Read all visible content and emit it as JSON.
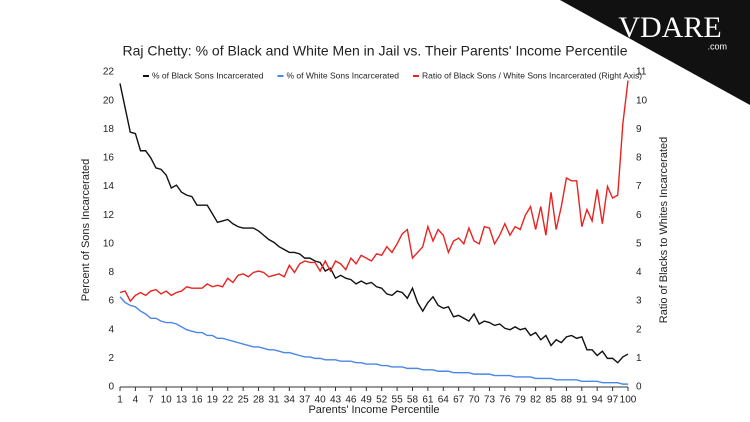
{
  "logo": {
    "name": "VDARE",
    "suffix": ".com"
  },
  "chart_data": {
    "type": "line",
    "title": "Raj Chetty: % of Black and White Men in Jail vs. Their Parents' Income Percentile",
    "x_label": "Parents' Income Percentile",
    "y_label": "Percent of Sons Incarcerated",
    "y2_label": "Ratio of Blacks to Whites Incarcerated",
    "x": [
      1,
      2,
      3,
      4,
      5,
      6,
      7,
      8,
      9,
      10,
      11,
      12,
      13,
      14,
      15,
      16,
      17,
      18,
      19,
      20,
      21,
      22,
      23,
      24,
      25,
      26,
      27,
      28,
      29,
      30,
      31,
      32,
      33,
      34,
      35,
      36,
      37,
      38,
      39,
      40,
      41,
      42,
      43,
      44,
      45,
      46,
      47,
      48,
      49,
      50,
      51,
      52,
      53,
      54,
      55,
      56,
      57,
      58,
      59,
      60,
      61,
      62,
      63,
      64,
      65,
      66,
      67,
      68,
      69,
      70,
      71,
      72,
      73,
      74,
      75,
      76,
      77,
      78,
      79,
      80,
      81,
      82,
      83,
      84,
      85,
      86,
      87,
      88,
      89,
      90,
      91,
      92,
      93,
      94,
      95,
      96,
      97,
      98,
      99,
      100
    ],
    "xlim": [
      1,
      100
    ],
    "xticks": [
      1,
      4,
      7,
      10,
      13,
      16,
      19,
      22,
      25,
      28,
      31,
      34,
      37,
      40,
      43,
      46,
      49,
      52,
      55,
      58,
      61,
      64,
      67,
      70,
      73,
      76,
      79,
      82,
      85,
      88,
      91,
      94,
      97,
      100
    ],
    "ylim": [
      0,
      22
    ],
    "yticks": [
      0,
      2,
      4,
      6,
      8,
      10,
      12,
      14,
      16,
      18,
      20,
      22
    ],
    "y2lim": [
      0,
      11
    ],
    "y2ticks": [
      0,
      1,
      2,
      3,
      4,
      5,
      6,
      7,
      8,
      9,
      10,
      11
    ],
    "grid": false,
    "series": [
      {
        "name": "% of Black Sons Incarcerated",
        "color": "#111111",
        "values": [
          21.2,
          19.5,
          17.8,
          17.7,
          16.5,
          16.5,
          16.0,
          15.3,
          15.2,
          14.8,
          13.9,
          14.1,
          13.6,
          13.4,
          13.3,
          12.7,
          12.7,
          12.7,
          12.1,
          11.5,
          11.6,
          11.7,
          11.4,
          11.2,
          11.1,
          11.1,
          11.1,
          10.9,
          10.6,
          10.3,
          10.1,
          9.8,
          9.6,
          9.4,
          9.4,
          9.3,
          9.0,
          9.0,
          8.8,
          8.7,
          8.1,
          8.3,
          7.6,
          7.8,
          7.6,
          7.5,
          7.2,
          7.4,
          7.2,
          7.3,
          7.0,
          6.9,
          6.5,
          6.4,
          6.7,
          6.6,
          6.2,
          6.9,
          5.9,
          5.3,
          5.9,
          6.3,
          5.7,
          5.5,
          5.6,
          4.9,
          5.0,
          4.8,
          4.6,
          5.1,
          4.4,
          4.6,
          4.5,
          4.3,
          4.4,
          4.1,
          4.0,
          4.2,
          4.0,
          4.1,
          3.6,
          3.8,
          3.3,
          3.6,
          2.9,
          3.3,
          3.1,
          3.5,
          3.6,
          3.4,
          3.5,
          2.6,
          2.6,
          2.2,
          2.5,
          2.0,
          2.0,
          1.7,
          2.1,
          2.3
        ]
      },
      {
        "name": "% of White Sons Incarcerated",
        "color": "#4a86e8",
        "values": [
          6.3,
          5.9,
          5.7,
          5.6,
          5.3,
          5.1,
          4.8,
          4.8,
          4.6,
          4.5,
          4.5,
          4.4,
          4.2,
          4.0,
          3.9,
          3.8,
          3.8,
          3.6,
          3.6,
          3.4,
          3.4,
          3.3,
          3.2,
          3.1,
          3.0,
          2.9,
          2.8,
          2.8,
          2.7,
          2.6,
          2.6,
          2.5,
          2.4,
          2.4,
          2.3,
          2.2,
          2.1,
          2.1,
          2.0,
          2.0,
          1.9,
          1.9,
          1.9,
          1.8,
          1.8,
          1.8,
          1.7,
          1.7,
          1.6,
          1.6,
          1.6,
          1.5,
          1.5,
          1.4,
          1.4,
          1.4,
          1.3,
          1.3,
          1.3,
          1.2,
          1.2,
          1.2,
          1.1,
          1.1,
          1.1,
          1.0,
          1.0,
          1.0,
          1.0,
          0.9,
          0.9,
          0.9,
          0.9,
          0.8,
          0.8,
          0.8,
          0.8,
          0.7,
          0.7,
          0.7,
          0.7,
          0.6,
          0.6,
          0.6,
          0.6,
          0.5,
          0.5,
          0.5,
          0.5,
          0.5,
          0.4,
          0.4,
          0.4,
          0.4,
          0.3,
          0.3,
          0.3,
          0.3,
          0.2,
          0.2
        ]
      },
      {
        "name": "Ratio of Black Sons / White Sons Incarcerated (Right Axis)",
        "color": "#e8231f",
        "axis": "y2",
        "values": [
          3.3,
          3.35,
          3.0,
          3.2,
          3.3,
          3.2,
          3.35,
          3.4,
          3.25,
          3.35,
          3.2,
          3.3,
          3.35,
          3.5,
          3.45,
          3.45,
          3.45,
          3.6,
          3.5,
          3.55,
          3.5,
          3.8,
          3.65,
          3.9,
          3.95,
          3.85,
          4.0,
          4.05,
          4.0,
          3.85,
          3.9,
          3.95,
          3.85,
          4.25,
          4.0,
          4.3,
          4.4,
          4.35,
          4.35,
          4.05,
          4.4,
          4.05,
          4.4,
          4.3,
          4.1,
          4.5,
          4.3,
          4.6,
          4.5,
          4.4,
          4.65,
          4.6,
          4.9,
          4.7,
          5.0,
          5.35,
          5.5,
          4.5,
          4.7,
          4.9,
          5.6,
          5.1,
          5.5,
          5.3,
          4.7,
          5.1,
          5.2,
          5.0,
          5.55,
          5.1,
          5.0,
          5.6,
          5.55,
          5.0,
          5.3,
          5.7,
          5.3,
          5.6,
          5.5,
          6.0,
          6.3,
          5.5,
          6.3,
          5.3,
          6.8,
          5.5,
          6.3,
          7.3,
          7.2,
          7.2,
          5.6,
          6.2,
          5.8,
          6.9,
          5.7,
          7.0,
          6.6,
          6.7,
          9.2,
          10.7
        ]
      }
    ]
  }
}
